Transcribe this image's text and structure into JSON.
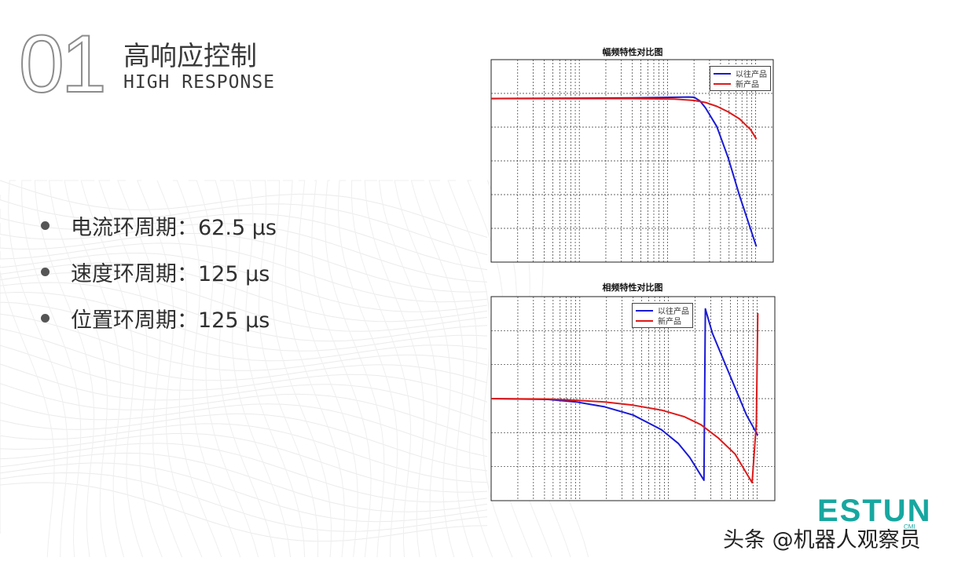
{
  "header": {
    "section_number": "01",
    "title_cn": "高响应控制",
    "title_en": "HIGH  RESPONSE"
  },
  "specs": [
    {
      "label": "电流环周期：62.5 μs"
    },
    {
      "label": "速度环周期：125 μs"
    },
    {
      "label": "位置环周期：125 μs"
    }
  ],
  "chart_data": [
    {
      "type": "line",
      "title": "幅频特性对比图",
      "x_scale": "log",
      "grid": true,
      "legend_position": "top-right",
      "series": [
        {
          "name": "以往产品",
          "color": "#1a1ad6",
          "x": [
            0.0,
            0.5,
            0.6,
            0.7,
            0.72,
            0.74,
            0.76,
            0.8,
            0.84,
            0.88,
            0.94
          ],
          "y": [
            0.0,
            0.4,
            0.7,
            1.0,
            0.8,
            -1.5,
            -6,
            -18,
            -38,
            -62,
            -95
          ]
        },
        {
          "name": "新产品",
          "color": "#dd1a1a",
          "x": [
            0.0,
            0.5,
            0.65,
            0.72,
            0.76,
            0.8,
            0.84,
            0.88,
            0.92,
            0.94
          ],
          "y": [
            0.0,
            0.0,
            -0.3,
            -1.2,
            -2.5,
            -5,
            -8.5,
            -13,
            -20,
            -26
          ]
        }
      ]
    },
    {
      "type": "line",
      "title": "相频特性对比图",
      "x_scale": "log",
      "grid": true,
      "legend_position": "top-center",
      "series": [
        {
          "name": "以往产品",
          "color": "#1a1ad6",
          "x": [
            0.0,
            0.2,
            0.3,
            0.4,
            0.5,
            0.6,
            0.66,
            0.7,
            0.75,
            0.755,
            0.78,
            0.84,
            0.9,
            0.94
          ],
          "y": [
            0,
            -1,
            -4,
            -10,
            -20,
            -38,
            -55,
            -72,
            -100,
            110,
            80,
            30,
            -20,
            -45
          ]
        },
        {
          "name": "新产品",
          "color": "#dd1a1a",
          "x": [
            0.0,
            0.2,
            0.3,
            0.4,
            0.5,
            0.6,
            0.68,
            0.74,
            0.8,
            0.86,
            0.92,
            0.935,
            0.94
          ],
          "y": [
            0,
            -0.5,
            -2,
            -4,
            -8,
            -14,
            -22,
            -32,
            -48,
            -68,
            -103,
            -30,
            105
          ]
        }
      ]
    }
  ],
  "logo": {
    "brand": "ESTUN",
    "sub": "CMI"
  },
  "watermark": "头条 @机器人观察员"
}
